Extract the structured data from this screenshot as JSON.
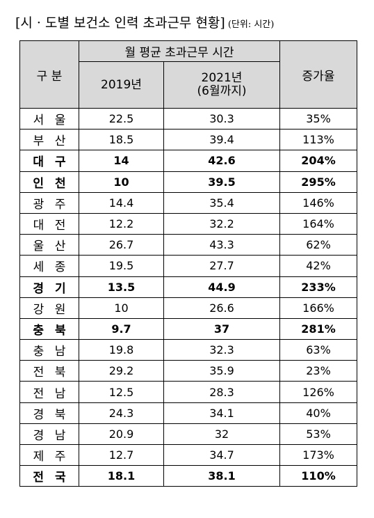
{
  "title": {
    "main": "[시 · 도별 보건소 인력 초과근무 현황]",
    "unit": "(단위: 시간)"
  },
  "table": {
    "headers": {
      "region": "구 분",
      "group": "월 평균 초과근무 시간",
      "y2019": "2019년",
      "y2021_line1": "2021년",
      "y2021_line2": "(6월까지)",
      "rate": "증가율"
    },
    "rows": [
      {
        "region": "서 울",
        "y2019": "22.5",
        "y2021": "30.3",
        "rate": "35%",
        "bold": false
      },
      {
        "region": "부 산",
        "y2019": "18.5",
        "y2021": "39.4",
        "rate": "113%",
        "bold": false
      },
      {
        "region": "대 구",
        "y2019": "14",
        "y2021": "42.6",
        "rate": "204%",
        "bold": true
      },
      {
        "region": "인 천",
        "y2019": "10",
        "y2021": "39.5",
        "rate": "295%",
        "bold": true
      },
      {
        "region": "광 주",
        "y2019": "14.4",
        "y2021": "35.4",
        "rate": "146%",
        "bold": false
      },
      {
        "region": "대 전",
        "y2019": "12.2",
        "y2021": "32.2",
        "rate": "164%",
        "bold": false
      },
      {
        "region": "울 산",
        "y2019": "26.7",
        "y2021": "43.3",
        "rate": "62%",
        "bold": false
      },
      {
        "region": "세 종",
        "y2019": "19.5",
        "y2021": "27.7",
        "rate": "42%",
        "bold": false
      },
      {
        "region": "경 기",
        "y2019": "13.5",
        "y2021": "44.9",
        "rate": "233%",
        "bold": true
      },
      {
        "region": "강 원",
        "y2019": "10",
        "y2021": "26.6",
        "rate": "166%",
        "bold": false
      },
      {
        "region": "충 북",
        "y2019": "9.7",
        "y2021": "37",
        "rate": "281%",
        "bold": true
      },
      {
        "region": "충 남",
        "y2019": "19.8",
        "y2021": "32.3",
        "rate": "63%",
        "bold": false
      },
      {
        "region": "전 북",
        "y2019": "29.2",
        "y2021": "35.9",
        "rate": "23%",
        "bold": false
      },
      {
        "region": "전 남",
        "y2019": "12.5",
        "y2021": "28.3",
        "rate": "126%",
        "bold": false
      },
      {
        "region": "경 북",
        "y2019": "24.3",
        "y2021": "34.1",
        "rate": "40%",
        "bold": false
      },
      {
        "region": "경 남",
        "y2019": "20.9",
        "y2021": "32",
        "rate": "53%",
        "bold": false
      },
      {
        "region": "제 주",
        "y2019": "12.7",
        "y2021": "34.7",
        "rate": "173%",
        "bold": false
      },
      {
        "region": "전 국",
        "y2019": "18.1",
        "y2021": "38.1",
        "rate": "110%",
        "bold": true
      }
    ]
  },
  "colors": {
    "header_bg": "#d9d9d9",
    "border": "#000000",
    "text": "#000000"
  }
}
